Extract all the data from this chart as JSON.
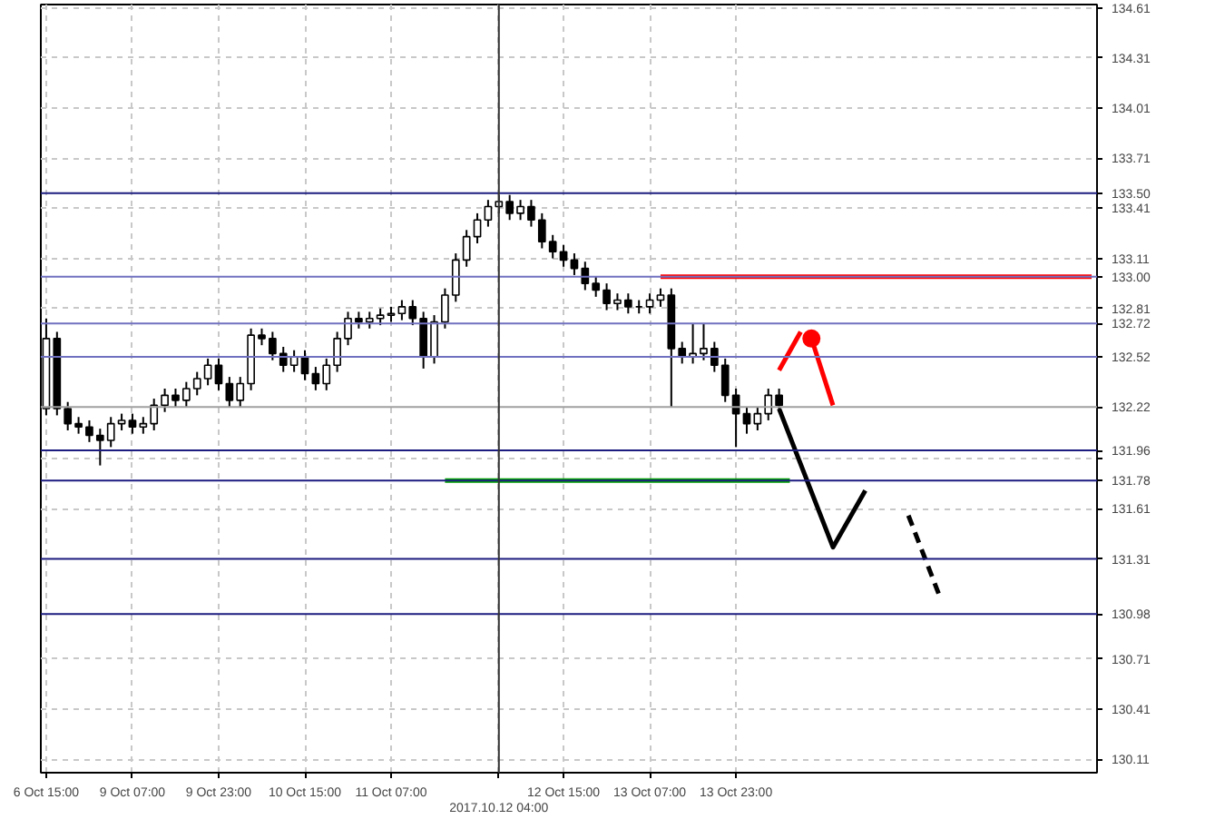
{
  "chart_data": {
    "type": "candlestick",
    "categories": [
      "6 Oct 15:00",
      null,
      null,
      null,
      null,
      null,
      null,
      null,
      "9 Oct 07:00",
      null,
      null,
      null,
      null,
      null,
      null,
      null,
      "9 Oct 23:00",
      null,
      null,
      null,
      null,
      null,
      null,
      null,
      "10 Oct 15:00",
      null,
      null,
      null,
      null,
      null,
      null,
      null,
      "11 Oct 07:00",
      null,
      null,
      null,
      null,
      null,
      null,
      null,
      null,
      null,
      "2017.10.12 04:00",
      null,
      null,
      null,
      null,
      null,
      "12 Oct 15:00",
      null,
      null,
      null,
      null,
      null,
      null,
      null,
      "13 Oct 07:00",
      null,
      null,
      null,
      null,
      null,
      null,
      null,
      "13 Oct 23:00",
      null,
      null,
      null,
      null,
      null,
      null,
      null,
      null,
      null,
      null,
      null,
      null,
      null,
      null,
      null,
      null,
      null,
      null,
      null,
      null,
      null,
      null,
      null,
      null,
      null,
      null,
      null,
      null,
      null,
      null,
      null,
      null,
      null
    ],
    "ohlc": [
      [
        132.21,
        132.75,
        132.17,
        132.63
      ],
      [
        132.63,
        132.67,
        132.17,
        132.21
      ],
      [
        132.21,
        132.25,
        132.08,
        132.12
      ],
      [
        132.12,
        132.16,
        132.06,
        132.1
      ],
      [
        132.1,
        132.14,
        132.01,
        132.05
      ],
      [
        132.05,
        132.09,
        131.87,
        132.02
      ],
      [
        132.02,
        132.16,
        131.98,
        132.12
      ],
      [
        132.12,
        132.18,
        132.08,
        132.14
      ],
      [
        132.14,
        132.18,
        132.06,
        132.1
      ],
      [
        132.1,
        132.16,
        132.06,
        132.12
      ],
      [
        132.12,
        132.27,
        132.08,
        132.23
      ],
      [
        132.23,
        132.33,
        132.19,
        132.29
      ],
      [
        132.29,
        132.33,
        132.22,
        132.26
      ],
      [
        132.26,
        132.37,
        132.22,
        132.33
      ],
      [
        132.33,
        132.43,
        132.29,
        132.39
      ],
      [
        132.39,
        132.51,
        132.35,
        132.47
      ],
      [
        132.47,
        132.51,
        132.32,
        132.36
      ],
      [
        132.36,
        132.4,
        132.22,
        132.26
      ],
      [
        132.26,
        132.4,
        132.22,
        132.36
      ],
      [
        132.36,
        132.69,
        132.32,
        132.65
      ],
      [
        132.65,
        132.69,
        132.59,
        132.63
      ],
      [
        132.63,
        132.67,
        132.5,
        132.54
      ],
      [
        132.54,
        132.58,
        132.43,
        132.47
      ],
      [
        132.47,
        132.56,
        132.43,
        132.52
      ],
      [
        132.52,
        132.56,
        132.38,
        132.42
      ],
      [
        132.42,
        132.46,
        132.32,
        132.36
      ],
      [
        132.36,
        132.51,
        132.32,
        132.47
      ],
      [
        132.47,
        132.67,
        132.43,
        132.63
      ],
      [
        132.63,
        132.79,
        132.59,
        132.75
      ],
      [
        132.75,
        132.79,
        132.69,
        132.73
      ],
      [
        132.73,
        132.79,
        132.69,
        132.75
      ],
      [
        132.75,
        132.81,
        132.71,
        132.77
      ],
      [
        132.77,
        132.82,
        132.73,
        132.78
      ],
      [
        132.78,
        132.86,
        132.74,
        132.82
      ],
      [
        132.82,
        132.86,
        132.71,
        132.75
      ],
      [
        132.75,
        132.79,
        132.45,
        132.52
      ],
      [
        132.52,
        132.77,
        132.48,
        132.73
      ],
      [
        132.73,
        132.93,
        132.69,
        132.89
      ],
      [
        132.89,
        133.14,
        132.85,
        133.1
      ],
      [
        133.1,
        133.28,
        133.06,
        133.24
      ],
      [
        133.24,
        133.38,
        133.2,
        133.34
      ],
      [
        133.34,
        133.46,
        133.3,
        133.42
      ],
      [
        133.42,
        133.49,
        133.38,
        133.45
      ],
      [
        133.45,
        133.49,
        133.34,
        133.38
      ],
      [
        133.38,
        133.46,
        133.34,
        133.42
      ],
      [
        133.42,
        133.46,
        133.3,
        133.34
      ],
      [
        133.34,
        133.38,
        133.17,
        133.21
      ],
      [
        133.21,
        133.25,
        133.11,
        133.15
      ],
      [
        133.15,
        133.19,
        133.06,
        133.1
      ],
      [
        133.1,
        133.14,
        133.01,
        133.05
      ],
      [
        133.05,
        133.09,
        132.92,
        132.96
      ],
      [
        132.96,
        133.0,
        132.88,
        132.92
      ],
      [
        132.92,
        132.96,
        132.8,
        132.84
      ],
      [
        132.84,
        132.9,
        132.8,
        132.86
      ],
      [
        132.86,
        132.9,
        132.78,
        132.82
      ],
      [
        132.82,
        132.86,
        132.78,
        132.82
      ],
      [
        132.82,
        132.9,
        132.78,
        132.86
      ],
      [
        132.86,
        132.93,
        132.82,
        132.89
      ],
      [
        132.89,
        132.93,
        132.22,
        132.57
      ],
      [
        132.57,
        132.61,
        132.48,
        132.52
      ],
      [
        132.52,
        132.72,
        132.48,
        132.54
      ],
      [
        132.54,
        132.72,
        132.5,
        132.57
      ],
      [
        132.57,
        132.61,
        132.43,
        132.47
      ],
      [
        132.47,
        132.51,
        132.25,
        132.29
      ],
      [
        132.29,
        132.33,
        131.98,
        132.18
      ],
      [
        132.18,
        132.22,
        132.06,
        132.12
      ],
      [
        132.12,
        132.22,
        132.08,
        132.18
      ],
      [
        132.18,
        132.33,
        132.14,
        132.29
      ],
      [
        132.29,
        132.33,
        132.19,
        132.23
      ],
      null,
      null,
      null,
      null,
      null,
      null,
      null,
      null,
      null,
      null,
      null,
      null,
      null,
      null,
      null,
      null,
      null,
      null,
      null,
      null,
      null,
      null,
      null,
      null,
      null,
      null,
      null,
      null,
      null
    ],
    "series": [
      {
        "type": "line",
        "color": "#00a000",
        "values": [
          null,
          null,
          null,
          null,
          null,
          null,
          null,
          null,
          null,
          null,
          null,
          null,
          null,
          null,
          null,
          null,
          null,
          null,
          null,
          null,
          null,
          null,
          null,
          null,
          null,
          null,
          null,
          null,
          null,
          null,
          null,
          null,
          null,
          null,
          null,
          null,
          null,
          131.78,
          null,
          null,
          null,
          null,
          null,
          null,
          null,
          null,
          null,
          null,
          null,
          null,
          null,
          null,
          null,
          null,
          null,
          null,
          null,
          null,
          null,
          null,
          null,
          null,
          null,
          null,
          null,
          null,
          null,
          null,
          null,
          131.78,
          null,
          null,
          null,
          null,
          null,
          null,
          null,
          null,
          null,
          null,
          null,
          null,
          null,
          null,
          null,
          null,
          null,
          null,
          null,
          null,
          null,
          null,
          null,
          null,
          null,
          null,
          null,
          null
        ]
      },
      {
        "type": "line",
        "color": "#ff0000",
        "values": [
          null,
          null,
          null,
          null,
          null,
          null,
          null,
          null,
          null,
          null,
          null,
          null,
          null,
          null,
          null,
          null,
          null,
          null,
          null,
          null,
          null,
          null,
          null,
          null,
          null,
          null,
          null,
          null,
          null,
          null,
          null,
          null,
          null,
          null,
          null,
          null,
          null,
          null,
          null,
          null,
          null,
          null,
          null,
          null,
          null,
          null,
          null,
          null,
          null,
          null,
          null,
          null,
          null,
          null,
          null,
          null,
          null,
          133.0,
          null,
          null,
          null,
          null,
          null,
          null,
          null,
          null,
          null,
          null,
          null,
          null,
          null,
          null,
          null,
          null,
          null,
          null,
          null,
          null,
          null,
          null,
          null,
          null,
          null,
          null,
          null,
          null,
          null,
          null,
          null,
          null,
          null,
          null,
          null,
          null,
          null,
          null,
          null,
          133.0
        ]
      },
      {
        "type": "line",
        "color": "#000000",
        "values": [
          null,
          null,
          null,
          null,
          null,
          null,
          null,
          null,
          null,
          null,
          null,
          null,
          null,
          null,
          null,
          null,
          null,
          null,
          null,
          null,
          null,
          null,
          null,
          null,
          null,
          null,
          null,
          null,
          null,
          null,
          null,
          null,
          null,
          null,
          null,
          null,
          null,
          null,
          null,
          null,
          null,
          null,
          null,
          null,
          null,
          null,
          null,
          null,
          null,
          null,
          null,
          null,
          null,
          null,
          null,
          null,
          null,
          null,
          null,
          null,
          null,
          null,
          null,
          null,
          null,
          null,
          null,
          null,
          132.21,
          null,
          null,
          null,
          null,
          131.38,
          null,
          null,
          131.72,
          null,
          null,
          null,
          null,
          null,
          null,
          null,
          null,
          null,
          null,
          null,
          null,
          null,
          null,
          null,
          null,
          null,
          null,
          null,
          null,
          null
        ]
      },
      {
        "type": "line",
        "color": "#ff0000",
        "values": [
          null,
          null,
          null,
          null,
          null,
          null,
          null,
          null,
          null,
          null,
          null,
          null,
          null,
          null,
          null,
          null,
          null,
          null,
          null,
          null,
          null,
          null,
          null,
          null,
          null,
          null,
          null,
          null,
          null,
          null,
          null,
          null,
          null,
          null,
          null,
          null,
          null,
          null,
          null,
          null,
          null,
          null,
          null,
          null,
          null,
          null,
          null,
          null,
          null,
          null,
          null,
          null,
          null,
          null,
          null,
          null,
          null,
          null,
          null,
          null,
          null,
          null,
          null,
          null,
          null,
          null,
          null,
          null,
          132.44,
          null,
          132.67,
          null,
          null,
          null,
          null,
          null,
          null,
          null,
          null,
          null,
          null,
          null,
          null,
          null,
          null,
          null,
          null,
          null,
          null,
          null,
          null,
          null,
          null,
          null,
          null,
          null,
          null,
          null
        ]
      },
      {
        "type": "line",
        "color": "#ff0000",
        "marker": "circle",
        "values": [
          null,
          null,
          null,
          null,
          null,
          null,
          null,
          null,
          null,
          null,
          null,
          null,
          null,
          null,
          null,
          null,
          null,
          null,
          null,
          null,
          null,
          null,
          null,
          null,
          null,
          null,
          null,
          null,
          null,
          null,
          null,
          null,
          null,
          null,
          null,
          null,
          null,
          null,
          null,
          null,
          null,
          null,
          null,
          null,
          null,
          null,
          null,
          null,
          null,
          null,
          null,
          null,
          null,
          null,
          null,
          null,
          null,
          null,
          null,
          null,
          null,
          null,
          null,
          null,
          null,
          null,
          null,
          null,
          null,
          null,
          null,
          132.63,
          null,
          132.23,
          null,
          null,
          null,
          null,
          null,
          null,
          null,
          null,
          null,
          null,
          null,
          null,
          null,
          null,
          null,
          null,
          null,
          null,
          null,
          null,
          null,
          null,
          null,
          null
        ]
      },
      {
        "type": "line",
        "color": "#000000",
        "line_style": "dashed",
        "values": [
          null,
          null,
          null,
          null,
          null,
          null,
          null,
          null,
          null,
          null,
          null,
          null,
          null,
          null,
          null,
          null,
          null,
          null,
          null,
          null,
          null,
          null,
          null,
          null,
          null,
          null,
          null,
          null,
          null,
          null,
          null,
          null,
          null,
          null,
          null,
          null,
          null,
          null,
          null,
          null,
          null,
          null,
          null,
          null,
          null,
          null,
          null,
          null,
          null,
          null,
          null,
          null,
          null,
          null,
          null,
          null,
          null,
          null,
          null,
          null,
          null,
          null,
          null,
          null,
          null,
          null,
          null,
          null,
          null,
          null,
          null,
          null,
          null,
          null,
          null,
          null,
          null,
          null,
          null,
          null,
          131.57,
          null,
          null,
          131.07,
          null,
          null,
          null,
          null,
          null,
          null,
          null,
          null,
          null,
          null,
          null,
          null,
          null,
          null
        ]
      }
    ],
    "ylim": [
      130.03,
      134.63
    ],
    "yticks": [
      134.61,
      134.31,
      134.01,
      133.71,
      133.41,
      133.11,
      132.81,
      {
        "value": 131.91,
        "label": null
      },
      131.61,
      130.71,
      130.41,
      130.11
    ],
    "ref_lines": [
      {
        "axis": "y",
        "value": 133.5,
        "label": "133.50",
        "color": "#1c1c80"
      },
      {
        "axis": "y",
        "value": 133.0,
        "label": "133.00",
        "color": "#7070c0"
      },
      {
        "axis": "y",
        "value": 132.72,
        "label": "132.72",
        "color": "#7070c0"
      },
      {
        "axis": "y",
        "value": 132.52,
        "label": "132.52",
        "color": "#7070c0"
      },
      {
        "axis": "y",
        "value": 132.22,
        "label": "132.22",
        "color": "#a0a0a0"
      },
      {
        "axis": "y",
        "value": 131.96,
        "label": "131.96",
        "color": "#1c1c80"
      },
      {
        "axis": "y",
        "value": 131.78,
        "label": "131.78",
        "color": "#1c1c80"
      },
      {
        "axis": "y",
        "value": 131.31,
        "label": "131.31",
        "color": "#1c1c80"
      },
      {
        "axis": "y",
        "value": 130.98,
        "label": "130.98",
        "color": "#1c1c80"
      },
      {
        "axis": "x",
        "value": "2017.10.12 04:00",
        "color": "#333333"
      }
    ],
    "grid": true
  }
}
